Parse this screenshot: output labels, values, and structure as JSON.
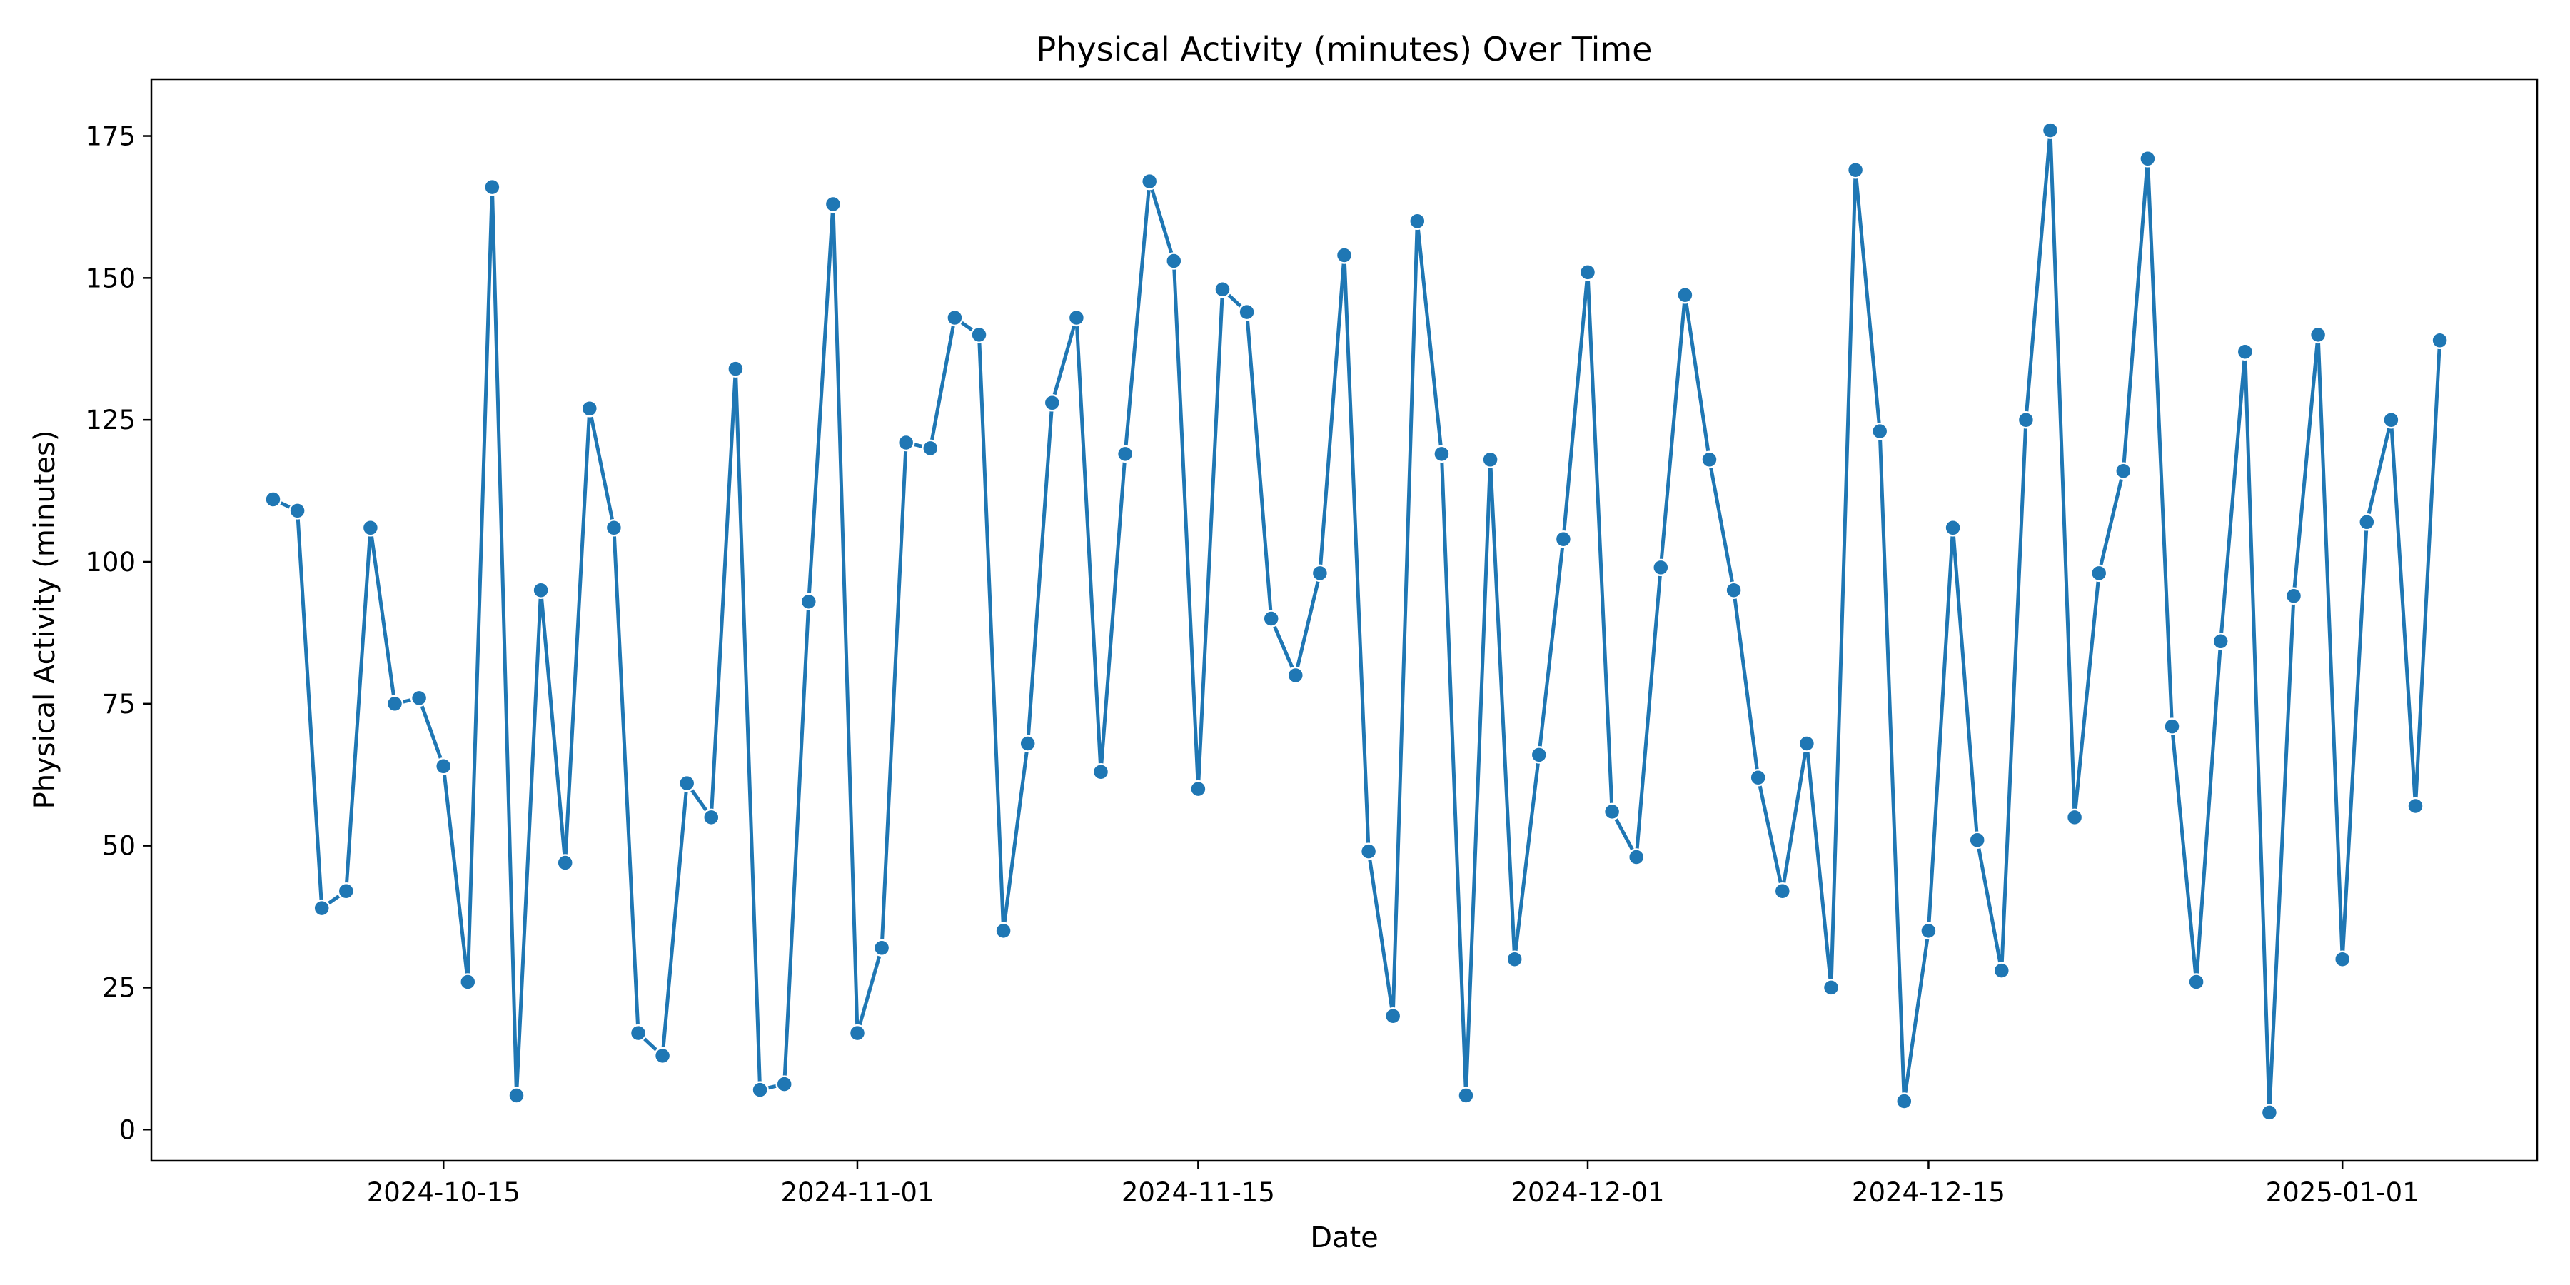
{
  "chart_data": {
    "type": "line",
    "title": "Physical Activity (minutes) Over Time",
    "xlabel": "Date",
    "ylabel": "Physical Activity (minutes)",
    "x_start": "2024-10-08",
    "x_step_days": 1,
    "x_ticks": [
      "2024-10-15",
      "2024-11-01",
      "2024-11-15",
      "2024-12-01",
      "2024-12-15",
      "2025-01-01"
    ],
    "xlim": [
      "2024-10-03",
      "2025-01-09"
    ],
    "y_ticks": [
      0,
      25,
      50,
      75,
      100,
      125,
      150,
      175
    ],
    "ylim": [
      -5.5,
      185
    ],
    "grid": false,
    "legend": "none",
    "line_color": "#1f77b4",
    "series": [
      {
        "values": [
          111,
          109,
          39,
          42,
          106,
          75,
          76,
          64,
          26,
          166,
          6,
          95,
          47,
          127,
          106,
          17,
          13,
          61,
          55,
          134,
          7,
          8,
          93,
          163,
          17,
          32,
          121,
          120,
          143,
          140,
          35,
          68,
          128,
          143,
          63,
          119,
          167,
          153,
          60,
          148,
          144,
          90,
          80,
          98,
          154,
          49,
          20,
          160,
          119,
          6,
          118,
          30,
          66,
          104,
          151,
          56,
          48,
          99,
          147,
          118,
          95,
          62,
          42,
          68,
          25,
          169,
          123,
          5,
          35,
          106,
          51,
          28,
          125,
          176,
          55,
          98,
          116,
          171,
          71,
          26,
          86,
          137,
          3,
          94,
          140,
          30,
          107,
          125,
          57,
          139
        ]
      }
    ]
  }
}
